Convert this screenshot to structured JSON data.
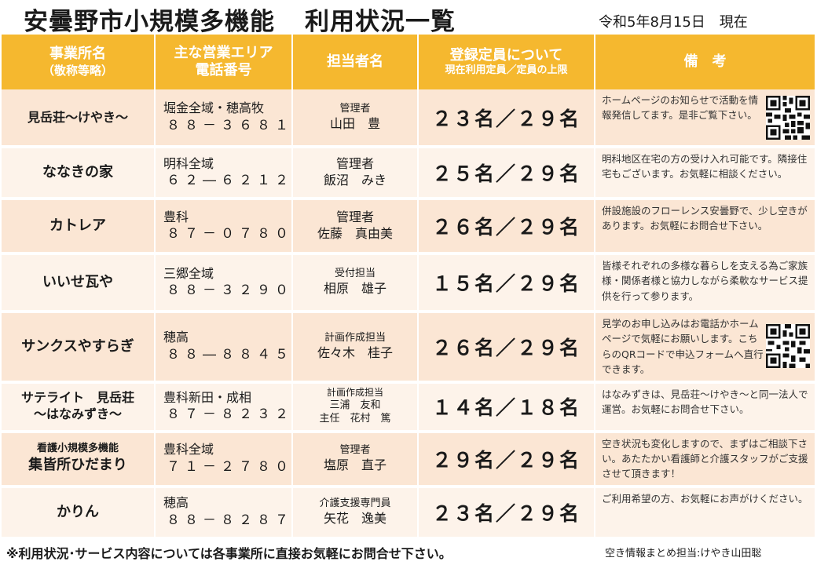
{
  "header": {
    "title_main": "安曇野市小規模多機能",
    "title_sub": "利用状況一覧",
    "date": "令和5年8月15日　現在"
  },
  "table": {
    "columns": {
      "office_line1": "事業所名",
      "office_line2": "（敬称等略）",
      "area_line1": "主な営業エリア",
      "area_line2": "電話番号",
      "person": "担当者名",
      "capacity_line1": "登録定員について",
      "capacity_line2": "現在利用定員／定員の上限",
      "remarks": "備　考"
    },
    "rows": [
      {
        "name": "見岳荘～けやき～",
        "area": "堀金全域・穂高牧",
        "tel": "８８－３６８１",
        "role": "管理者",
        "person": "山田　豊",
        "capacity": "２３名／２９名",
        "remark": "ホームページのお知らせで活動を情報発信してます。是非ご覧下さい。",
        "qr": "qr-code-icon"
      },
      {
        "name": "ななきの家",
        "area": "明科全域",
        "tel": "６２―６２１２",
        "role": "管理者",
        "person": "飯沼　みき",
        "capacity": "２５名／２９名",
        "remark": "明科地区在宅の方の受け入れ可能です。隣接住宅もございます。お気軽に相談ください。"
      },
      {
        "name": "カトレア",
        "area": "豊科",
        "tel": "８７－０７８０",
        "role": "管理者",
        "person": "佐藤　真由美",
        "capacity": "２６名／２９名",
        "remark": "併設施設のフローレンス安曇野で、少し空きがあります。お気軽にお問合せ下さい。"
      },
      {
        "name": "いいせ瓦や",
        "area": "三郷全域",
        "tel": "８８－３２９０",
        "role": "受付担当",
        "person": "相原　雄子",
        "capacity": "１５名／２９名",
        "remark": "皆様それぞれの多様な暮らしを支える為ご家族様・関係者様と協力しながら柔軟なサービス提供を行って参ります。"
      },
      {
        "name": "サンクスやすらぎ",
        "area": "穂高",
        "tel": "８８―８８４５",
        "role": "計画作成担当",
        "person": "佐々木　桂子",
        "capacity": "２６名／２９名",
        "remark": "見学のお申し込みはお電話かホームページで気軽にお願いします。こちらのQRコードで申込フォームへ直行できます。",
        "qr": "qr-code-icon"
      },
      {
        "name_line1": "サテライト　見岳荘",
        "name_line2": "～はなみずき～",
        "area": "豊科新田・成相",
        "tel": "８７－８２３２",
        "role": "計画作成担当",
        "person": "三浦　友和",
        "person2": "主任　花村　篤",
        "capacity": "１４名／１８名",
        "remark": "はなみずきは、見岳荘～けやき～と同一法人で運営。お気軽にお問合せ下さい。"
      },
      {
        "name_sub": "看護小規模多機能",
        "name": "集皆所ひだまり",
        "area": "豊科全域",
        "tel": "７１－２７８０",
        "role": "管理者",
        "person": "塩原　直子",
        "capacity": "２９名／２９名",
        "remark": "空き状況も変化しますので、まずはご相談下さい。あたたかい看護師と介護スタッフがご支援させて頂きます！"
      },
      {
        "name": "かりん",
        "area": "穂高",
        "tel": "８８－８２８７",
        "role": "介護支援専門員",
        "person": "矢花　逸美",
        "capacity": "２３名／２９名",
        "remark": "ご利用希望の方、お気軽にお声がけください。"
      }
    ]
  },
  "footer": {
    "note": "※利用状況･サービス内容については各事業所に直接お気軽にお問合せ下さい。",
    "credit": "空き情報まとめ担当:けやき山田聡"
  },
  "colors": {
    "header_bg": "#f5b82f",
    "row_odd": "#fbe6d4",
    "row_even": "#fdf3ea"
  }
}
